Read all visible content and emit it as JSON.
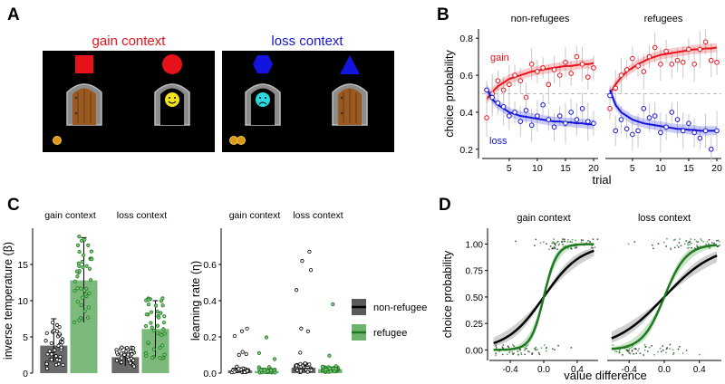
{
  "panels": {
    "A": {
      "letter": "A",
      "gain_title": "gain context",
      "loss_title": "loss context",
      "colors": {
        "gain": "#e8121a",
        "loss": "#1414e0"
      }
    },
    "B": {
      "letter": "B",
      "subtitles": [
        "non-refugees",
        "refugees"
      ],
      "gain_label": "gain",
      "loss_label": "loss"
    },
    "C": {
      "letter": "C",
      "subtitles_left": [
        "gain context",
        "loss context"
      ],
      "subtitles_right": [
        "gain context",
        "loss context"
      ],
      "legend": [
        "non-refugee",
        "refugee"
      ],
      "colors": {
        "nonrefugee": "#5a5a5a",
        "refugee": "#6db36d",
        "refugee_dot": "#1f7a1f"
      }
    },
    "D": {
      "letter": "D",
      "subtitles": [
        "gain context",
        "loss context"
      ]
    }
  },
  "chart_data": [
    {
      "id": "B",
      "type": "line",
      "title": "",
      "xlabel": "trial",
      "ylabel": "choice probability",
      "xlim": [
        1,
        20
      ],
      "ylim": [
        0.15,
        0.85
      ],
      "xticks": [
        "5",
        "10",
        "15",
        "20"
      ],
      "yticks": [
        "0.2",
        "0.4",
        "0.6",
        "0.8"
      ],
      "reference_line": 0.5,
      "facets": [
        {
          "name": "non-refugees",
          "series": [
            {
              "name": "gain",
              "color": "#e8121a",
              "fit": [
                0.47,
                0.51,
                0.54,
                0.56,
                0.58,
                0.59,
                0.6,
                0.61,
                0.62,
                0.625,
                0.63,
                0.635,
                0.64,
                0.645,
                0.65,
                0.65,
                0.655,
                0.66,
                0.66,
                0.665
              ],
              "observed": [
                0.37,
                0.5,
                0.57,
                0.52,
                0.55,
                0.6,
                0.57,
                0.48,
                0.66,
                0.62,
                0.64,
                0.55,
                0.63,
                0.6,
                0.67,
                0.61,
                0.7,
                0.66,
                0.59,
                0.64
              ]
            },
            {
              "name": "loss",
              "color": "#1414e0",
              "fit": [
                0.53,
                0.47,
                0.44,
                0.42,
                0.4,
                0.39,
                0.38,
                0.375,
                0.37,
                0.365,
                0.36,
                0.355,
                0.35,
                0.35,
                0.345,
                0.345,
                0.34,
                0.34,
                0.335,
                0.335
              ],
              "observed": [
                0.52,
                0.48,
                0.45,
                0.43,
                0.38,
                0.4,
                0.35,
                0.41,
                0.33,
                0.38,
                0.44,
                0.36,
                0.32,
                0.38,
                0.34,
                0.4,
                0.36,
                0.42,
                0.35,
                0.34
              ]
            }
          ]
        },
        {
          "name": "refugees",
          "series": [
            {
              "name": "gain",
              "color": "#e8121a",
              "fit": [
                0.5,
                0.55,
                0.59,
                0.62,
                0.64,
                0.66,
                0.675,
                0.69,
                0.7,
                0.71,
                0.715,
                0.72,
                0.725,
                0.73,
                0.735,
                0.74,
                0.74,
                0.745,
                0.745,
                0.75
              ],
              "observed": [
                0.42,
                0.53,
                0.6,
                0.63,
                0.69,
                0.65,
                0.62,
                0.7,
                0.75,
                0.66,
                0.73,
                0.66,
                0.68,
                0.67,
                0.74,
                0.66,
                0.74,
                0.78,
                0.68,
                0.67
              ]
            },
            {
              "name": "loss",
              "color": "#1414e0",
              "fit": [
                0.52,
                0.44,
                0.4,
                0.38,
                0.36,
                0.35,
                0.34,
                0.335,
                0.33,
                0.325,
                0.32,
                0.315,
                0.31,
                0.31,
                0.305,
                0.305,
                0.3,
                0.3,
                0.3,
                0.3
              ],
              "observed": [
                0.49,
                0.3,
                0.36,
                0.31,
                0.28,
                0.3,
                0.42,
                0.37,
                0.38,
                0.29,
                0.32,
                0.4,
                0.36,
                0.3,
                0.34,
                0.29,
                0.26,
                0.3,
                0.2,
                0.3
              ]
            }
          ]
        }
      ]
    },
    {
      "id": "C-left",
      "type": "bar",
      "ylabel": "inverse temperature (β)",
      "ylim": [
        0,
        20
      ],
      "yticks": [
        "0",
        "5",
        "10",
        "15"
      ],
      "categories": [
        "gain context",
        "loss context"
      ],
      "series": [
        {
          "name": "non-refugee",
          "values": [
            3.8,
            2.2
          ],
          "error": [
            [
              1.5,
              7.5
            ],
            [
              1.0,
              3.5
            ]
          ]
        },
        {
          "name": "refugee",
          "values": [
            12.8,
            6.1
          ],
          "error": [
            [
              7.0,
              18.7
            ],
            [
              2.2,
              10.0
            ]
          ]
        }
      ]
    },
    {
      "id": "C-right",
      "type": "bar",
      "ylabel": "learning rate (η)",
      "ylim": [
        0,
        0.8
      ],
      "yticks": [
        "0.0",
        "0.2",
        "0.4",
        "0.6"
      ],
      "categories": [
        "gain context",
        "loss context"
      ],
      "series": [
        {
          "name": "non-refugee",
          "values": [
            0.015,
            0.03
          ]
        },
        {
          "name": "refugee",
          "values": [
            0.012,
            0.022
          ]
        }
      ]
    },
    {
      "id": "D",
      "type": "line",
      "xlabel": "value difference",
      "ylabel": "choice probability",
      "xlim": [
        -0.65,
        0.65
      ],
      "ylim": [
        -0.1,
        1.15
      ],
      "xticks": [
        "-0.4",
        "0.0",
        "0.4"
      ],
      "yticks": [
        "0.00",
        "0.25",
        "0.50",
        "0.75",
        "1.00"
      ],
      "facets": [
        {
          "name": "gain context",
          "slope_nonrefugee": 4.5,
          "slope_refugee": 13
        },
        {
          "name": "loss context",
          "slope_nonrefugee": 3.5,
          "slope_refugee": 8
        }
      ]
    }
  ]
}
